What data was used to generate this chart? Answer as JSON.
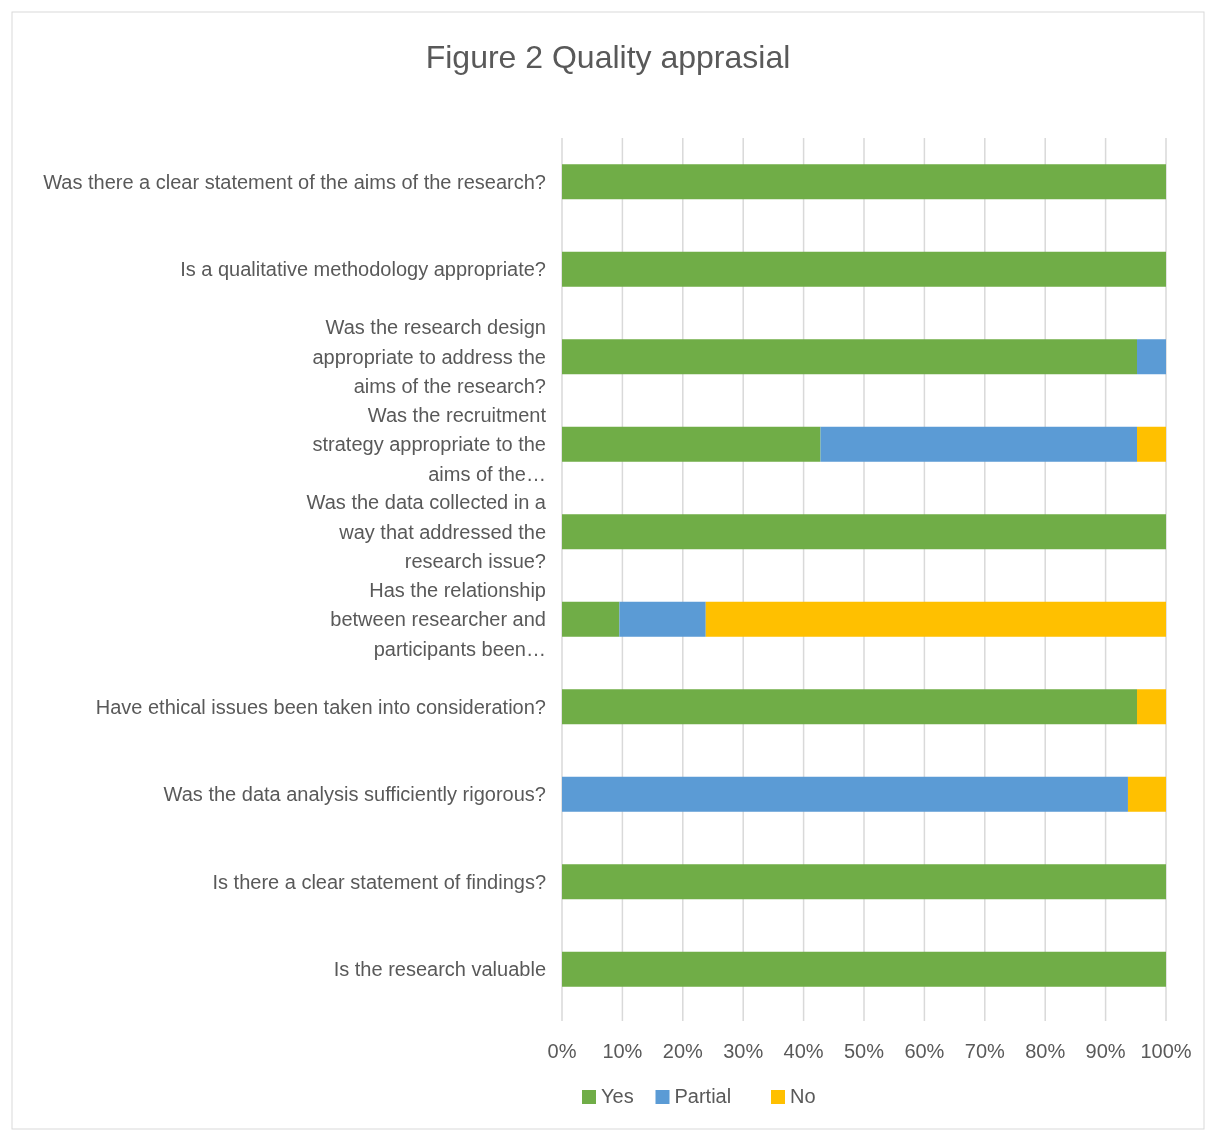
{
  "chart_data": {
    "type": "bar",
    "orientation": "horizontal",
    "stacked": true,
    "title": "Figure 2 Quality apprasial",
    "categories": [
      "Was there a clear statement of the aims of the research?",
      "Is a qualitative methodology appropriate?",
      "Was the research design appropriate to address the aims of the research?",
      "Was the recruitment strategy appropriate to the aims of the…",
      "Was the data collected in a way that addressed the research issue?",
      "Has the relationship between researcher and participants been…",
      "Have ethical issues been taken into consideration?",
      "Was the data analysis sufficiently rigorous?",
      "Is there a clear statement of findings?",
      "Is the research valuable"
    ],
    "series": [
      {
        "name": "Yes",
        "color": "#70ad47",
        "values": [
          100,
          100,
          95.2,
          42.8,
          100,
          9.5,
          95.2,
          null,
          100,
          100
        ]
      },
      {
        "name": "Partial",
        "color": "#5b9bd5",
        "values": [
          null,
          null,
          4.8,
          52.4,
          null,
          14.3,
          null,
          93.7,
          null,
          null
        ]
      },
      {
        "name": "No",
        "color": "#ffc000",
        "values": [
          null,
          null,
          null,
          4.8,
          null,
          76.2,
          4.8,
          6.3,
          null,
          null
        ]
      }
    ],
    "xlim": [
      0,
      100
    ],
    "xticks": [
      {
        "value": 0,
        "label": "0%"
      },
      {
        "value": 10,
        "label": "10%"
      },
      {
        "value": 20,
        "label": "20%"
      },
      {
        "value": 30,
        "label": "30%"
      },
      {
        "value": 40,
        "label": "40%"
      },
      {
        "value": 50,
        "label": "50%"
      },
      {
        "value": 60,
        "label": "60%"
      },
      {
        "value": 70,
        "label": "70%"
      },
      {
        "value": 80,
        "label": "80%"
      },
      {
        "value": 90,
        "label": "90%"
      },
      {
        "value": 100,
        "label": "100%"
      }
    ],
    "grid": "x",
    "legend": "bottom"
  }
}
